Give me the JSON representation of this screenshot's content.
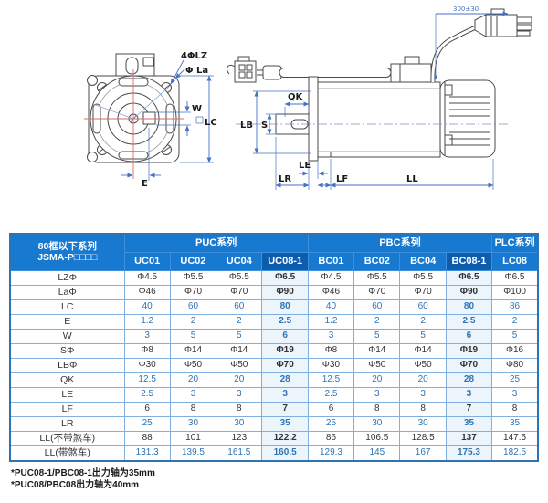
{
  "diagram": {
    "labels": {
      "holes": "4ΦLZ",
      "la": "Φ La",
      "w": "W",
      "lc": "LC",
      "e": "E",
      "qk": "QK",
      "lb": "LB",
      "s": "S",
      "le": "LE",
      "lr": "LR",
      "lf": "LF",
      "ll": "LL",
      "cable_length": "300±30"
    }
  },
  "table": {
    "corner": {
      "line1": "80框以下系列",
      "line2": "JSMA-P□□□□"
    },
    "groups": [
      {
        "label": "PUC系列",
        "span": 4
      },
      {
        "label": "PBC系列",
        "span": 4
      },
      {
        "label": "PLC系列",
        "span": 1
      }
    ],
    "columns": [
      "UC01",
      "UC02",
      "UC04",
      "UC08-1",
      "BC01",
      "BC02",
      "BC04",
      "BC08-1",
      "LC08"
    ],
    "highlight_columns": [
      3,
      7
    ],
    "rows": [
      {
        "label": "LZΦ",
        "blue": false,
        "values": [
          "Φ4.5",
          "Φ5.5",
          "Φ5.5",
          "Φ6.5",
          "Φ4.5",
          "Φ5.5",
          "Φ5.5",
          "Φ6.5",
          "Φ6.5"
        ]
      },
      {
        "label": "LaΦ",
        "blue": false,
        "values": [
          "Φ46",
          "Φ70",
          "Φ70",
          "Φ90",
          "Φ46",
          "Φ70",
          "Φ70",
          "Φ90",
          "Φ100"
        ]
      },
      {
        "label": "LC",
        "blue": true,
        "values": [
          "40",
          "60",
          "60",
          "80",
          "40",
          "60",
          "60",
          "80",
          "86"
        ]
      },
      {
        "label": "E",
        "blue": true,
        "values": [
          "1.2",
          "2",
          "2",
          "2.5",
          "1.2",
          "2",
          "2",
          "2.5",
          "2"
        ]
      },
      {
        "label": "W",
        "blue": true,
        "values": [
          "3",
          "5",
          "5",
          "6",
          "3",
          "5",
          "5",
          "6",
          "5"
        ]
      },
      {
        "label": "SΦ",
        "blue": false,
        "values": [
          "Φ8",
          "Φ14",
          "Φ14",
          "Φ19",
          "Φ8",
          "Φ14",
          "Φ14",
          "Φ19",
          "Φ16"
        ]
      },
      {
        "label": "LBΦ",
        "blue": false,
        "values": [
          "Φ30",
          "Φ50",
          "Φ50",
          "Φ70",
          "Φ30",
          "Φ50",
          "Φ50",
          "Φ70",
          "Φ80"
        ]
      },
      {
        "label": "QK",
        "blue": true,
        "values": [
          "12.5",
          "20",
          "20",
          "28",
          "12.5",
          "20",
          "20",
          "28",
          "25"
        ]
      },
      {
        "label": "LE",
        "blue": true,
        "values": [
          "2.5",
          "3",
          "3",
          "3",
          "2.5",
          "3",
          "3",
          "3",
          "3"
        ]
      },
      {
        "label": "LF",
        "blue": false,
        "values": [
          "6",
          "8",
          "8",
          "7",
          "6",
          "8",
          "8",
          "7",
          "8"
        ]
      },
      {
        "label": "LR",
        "blue": true,
        "values": [
          "25",
          "30",
          "30",
          "35",
          "25",
          "30",
          "30",
          "35",
          "35"
        ]
      },
      {
        "label": "LL(不带煞车)",
        "blue": false,
        "values": [
          "88",
          "101",
          "123",
          "122.2",
          "86",
          "106.5",
          "128.5",
          "137",
          "147.5"
        ]
      },
      {
        "label": "LL(带煞车)",
        "blue": true,
        "values": [
          "131.3",
          "139.5",
          "161.5",
          "160.5",
          "129.3",
          "145",
          "167",
          "175.3",
          "182.5"
        ]
      }
    ]
  },
  "footnotes": [
    "*PUC08-1/PBC08-1出力轴为35mm",
    "*PUC08/PBC08出力轴为40mm"
  ],
  "colors": {
    "header_blue": "#1779d0",
    "header_dark": "#0e5dad",
    "grid_border": "#7fb0e0",
    "outer_border": "#2e74b5",
    "accent_text": "#2e74b5",
    "highlight_cell": "#ecf4fc",
    "dimension_line": "#4472c4",
    "centerline_red": "#d96b6b"
  }
}
